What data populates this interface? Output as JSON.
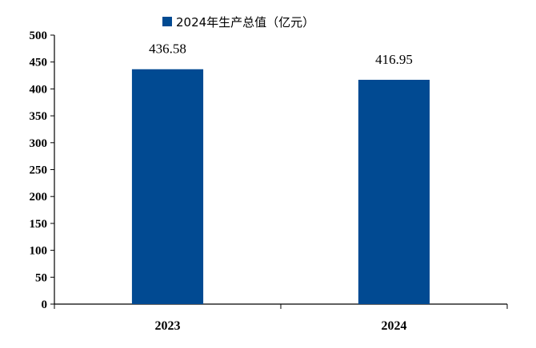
{
  "chart_data": {
    "type": "bar",
    "categories": [
      "2023",
      "2024"
    ],
    "series": [
      {
        "name": "2024年生产总值（亿元）",
        "values": [
          436.58,
          416.95
        ],
        "color": "#014A92"
      }
    ],
    "data_labels": [
      "436.58",
      "416.95"
    ],
    "ylim": [
      0,
      500
    ],
    "yticks": [
      0,
      50,
      100,
      150,
      200,
      250,
      300,
      350,
      400,
      450,
      500
    ],
    "grid": false,
    "legend_position": "top-center",
    "title": "",
    "xlabel": "",
    "ylabel": ""
  }
}
